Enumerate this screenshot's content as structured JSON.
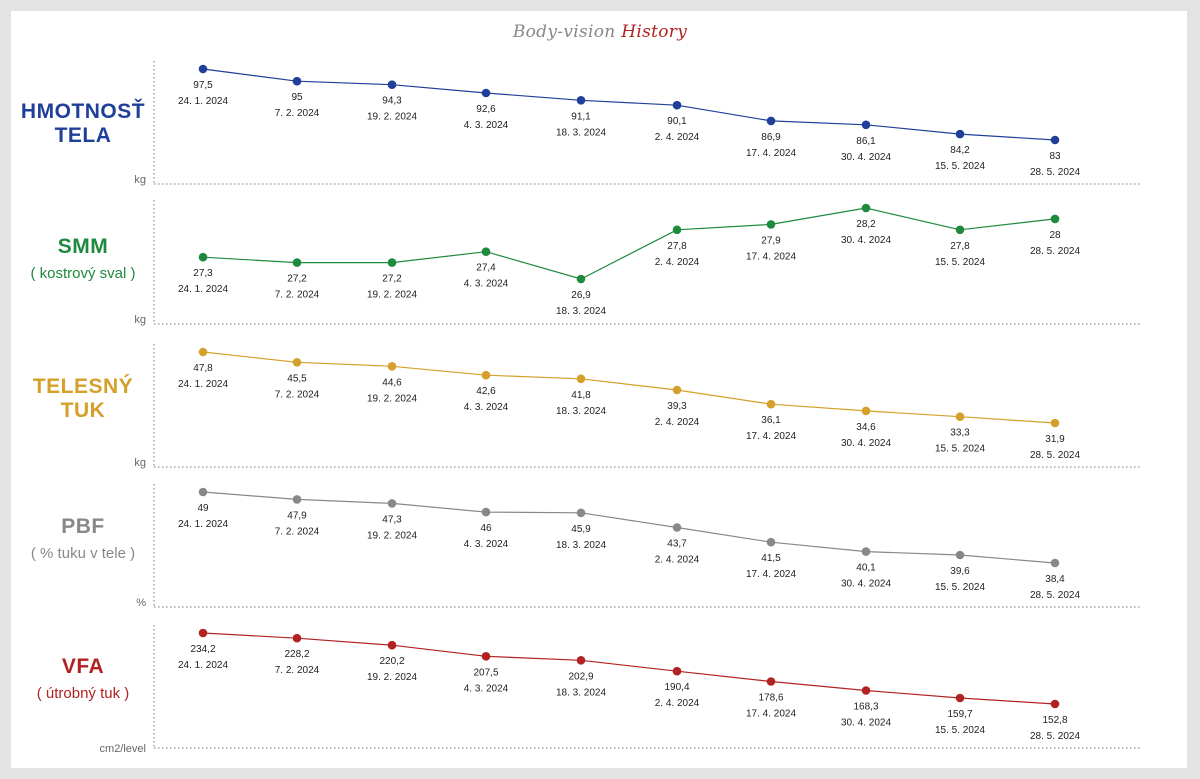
{
  "title": {
    "part1": "Body-vision",
    "part2": "History"
  },
  "colors": {
    "weight": "#1f3f9a",
    "smm": "#1e8a3e",
    "fat": "#d4a02a",
    "pbf": "#888888",
    "vfa": "#b22222"
  },
  "chart_data": {
    "type": "line",
    "title": "Body-vision History",
    "dates": [
      "24. 1. 2024",
      "7. 2. 2024",
      "19. 2. 2024",
      "4. 3. 2024",
      "18. 3. 2024",
      "2. 4. 2024",
      "17. 4. 2024",
      "30. 4. 2024",
      "15. 5. 2024",
      "28. 5. 2024"
    ],
    "series": [
      {
        "name": "HMOTNOSŤ TELA",
        "name1": "HMOTNOSŤ",
        "name2": "TELA",
        "subtitle": "",
        "unit": "kg",
        "color": "#1f3f9a",
        "labels": [
          "97,5",
          "95",
          "94,3",
          "92,6",
          "91,1",
          "90,1",
          "86,9",
          "86,1",
          "84,2",
          "83"
        ],
        "values": [
          97.5,
          95,
          94.3,
          92.6,
          91.1,
          90.1,
          86.9,
          86.1,
          84.2,
          83
        ]
      },
      {
        "name": "SMM",
        "name1": "SMM",
        "name2": "",
        "subtitle": "( kostrový sval )",
        "unit": "kg",
        "color": "#1e8a3e",
        "labels": [
          "27,3",
          "27,2",
          "27,2",
          "27,4",
          "26,9",
          "27,8",
          "27,9",
          "28,2",
          "27,8",
          "28"
        ],
        "values": [
          27.3,
          27.2,
          27.2,
          27.4,
          26.9,
          27.8,
          27.9,
          28.2,
          27.8,
          28
        ]
      },
      {
        "name": "TELESNÝ TUK",
        "name1": "TELESNÝ",
        "name2": "TUK",
        "subtitle": "",
        "unit": "kg",
        "color": "#d4a02a",
        "labels": [
          "47,8",
          "45,5",
          "44,6",
          "42,6",
          "41,8",
          "39,3",
          "36,1",
          "34,6",
          "33,3",
          "31,9"
        ],
        "values": [
          47.8,
          45.5,
          44.6,
          42.6,
          41.8,
          39.3,
          36.1,
          34.6,
          33.3,
          31.9
        ]
      },
      {
        "name": "PBF",
        "name1": "PBF",
        "name2": "",
        "subtitle": "( % tuku v tele )",
        "unit": "%",
        "color": "#888888",
        "labels": [
          "49",
          "47,9",
          "47,3",
          "46",
          "45,9",
          "43,7",
          "41,5",
          "40,1",
          "39,6",
          "38,4"
        ],
        "values": [
          49,
          47.9,
          47.3,
          46,
          45.9,
          43.7,
          41.5,
          40.1,
          39.6,
          38.4
        ]
      },
      {
        "name": "VFA",
        "name1": "VFA",
        "name2": "",
        "subtitle": "( útrobný tuk )",
        "unit": "cm2/level",
        "color": "#b22222",
        "labels": [
          "234,2",
          "228,2",
          "220,2",
          "207,5",
          "202,9",
          "190,4",
          "178,6",
          "168,3",
          "159,7",
          "152,8"
        ],
        "values": [
          234.2,
          228.2,
          220.2,
          207.5,
          202.9,
          190.4,
          178.6,
          168.3,
          159.7,
          152.8
        ]
      }
    ]
  }
}
